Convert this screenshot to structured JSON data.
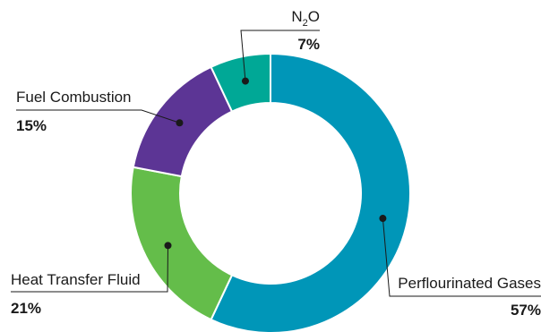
{
  "chart_data": {
    "type": "pie",
    "style": "donut",
    "slices": [
      {
        "label": "Perflourinated Gases",
        "value": 57,
        "value_label": "57%",
        "color": "#0096b8"
      },
      {
        "label": "Heat Transfer Fluid",
        "value": 21,
        "value_label": "21%",
        "color": "#64bd4a"
      },
      {
        "label": "Fuel Combustion",
        "value": 15,
        "value_label": "15%",
        "color": "#5c3595"
      },
      {
        "label": "N2O",
        "label_main": "N",
        "label_sub": "2",
        "label_tail": "O",
        "value": 7,
        "value_label": "7%",
        "color": "#00a896"
      }
    ],
    "start": "12 o'clock",
    "direction": "clockwise",
    "legend": "none",
    "label_style": "callout lines with dot markers"
  }
}
